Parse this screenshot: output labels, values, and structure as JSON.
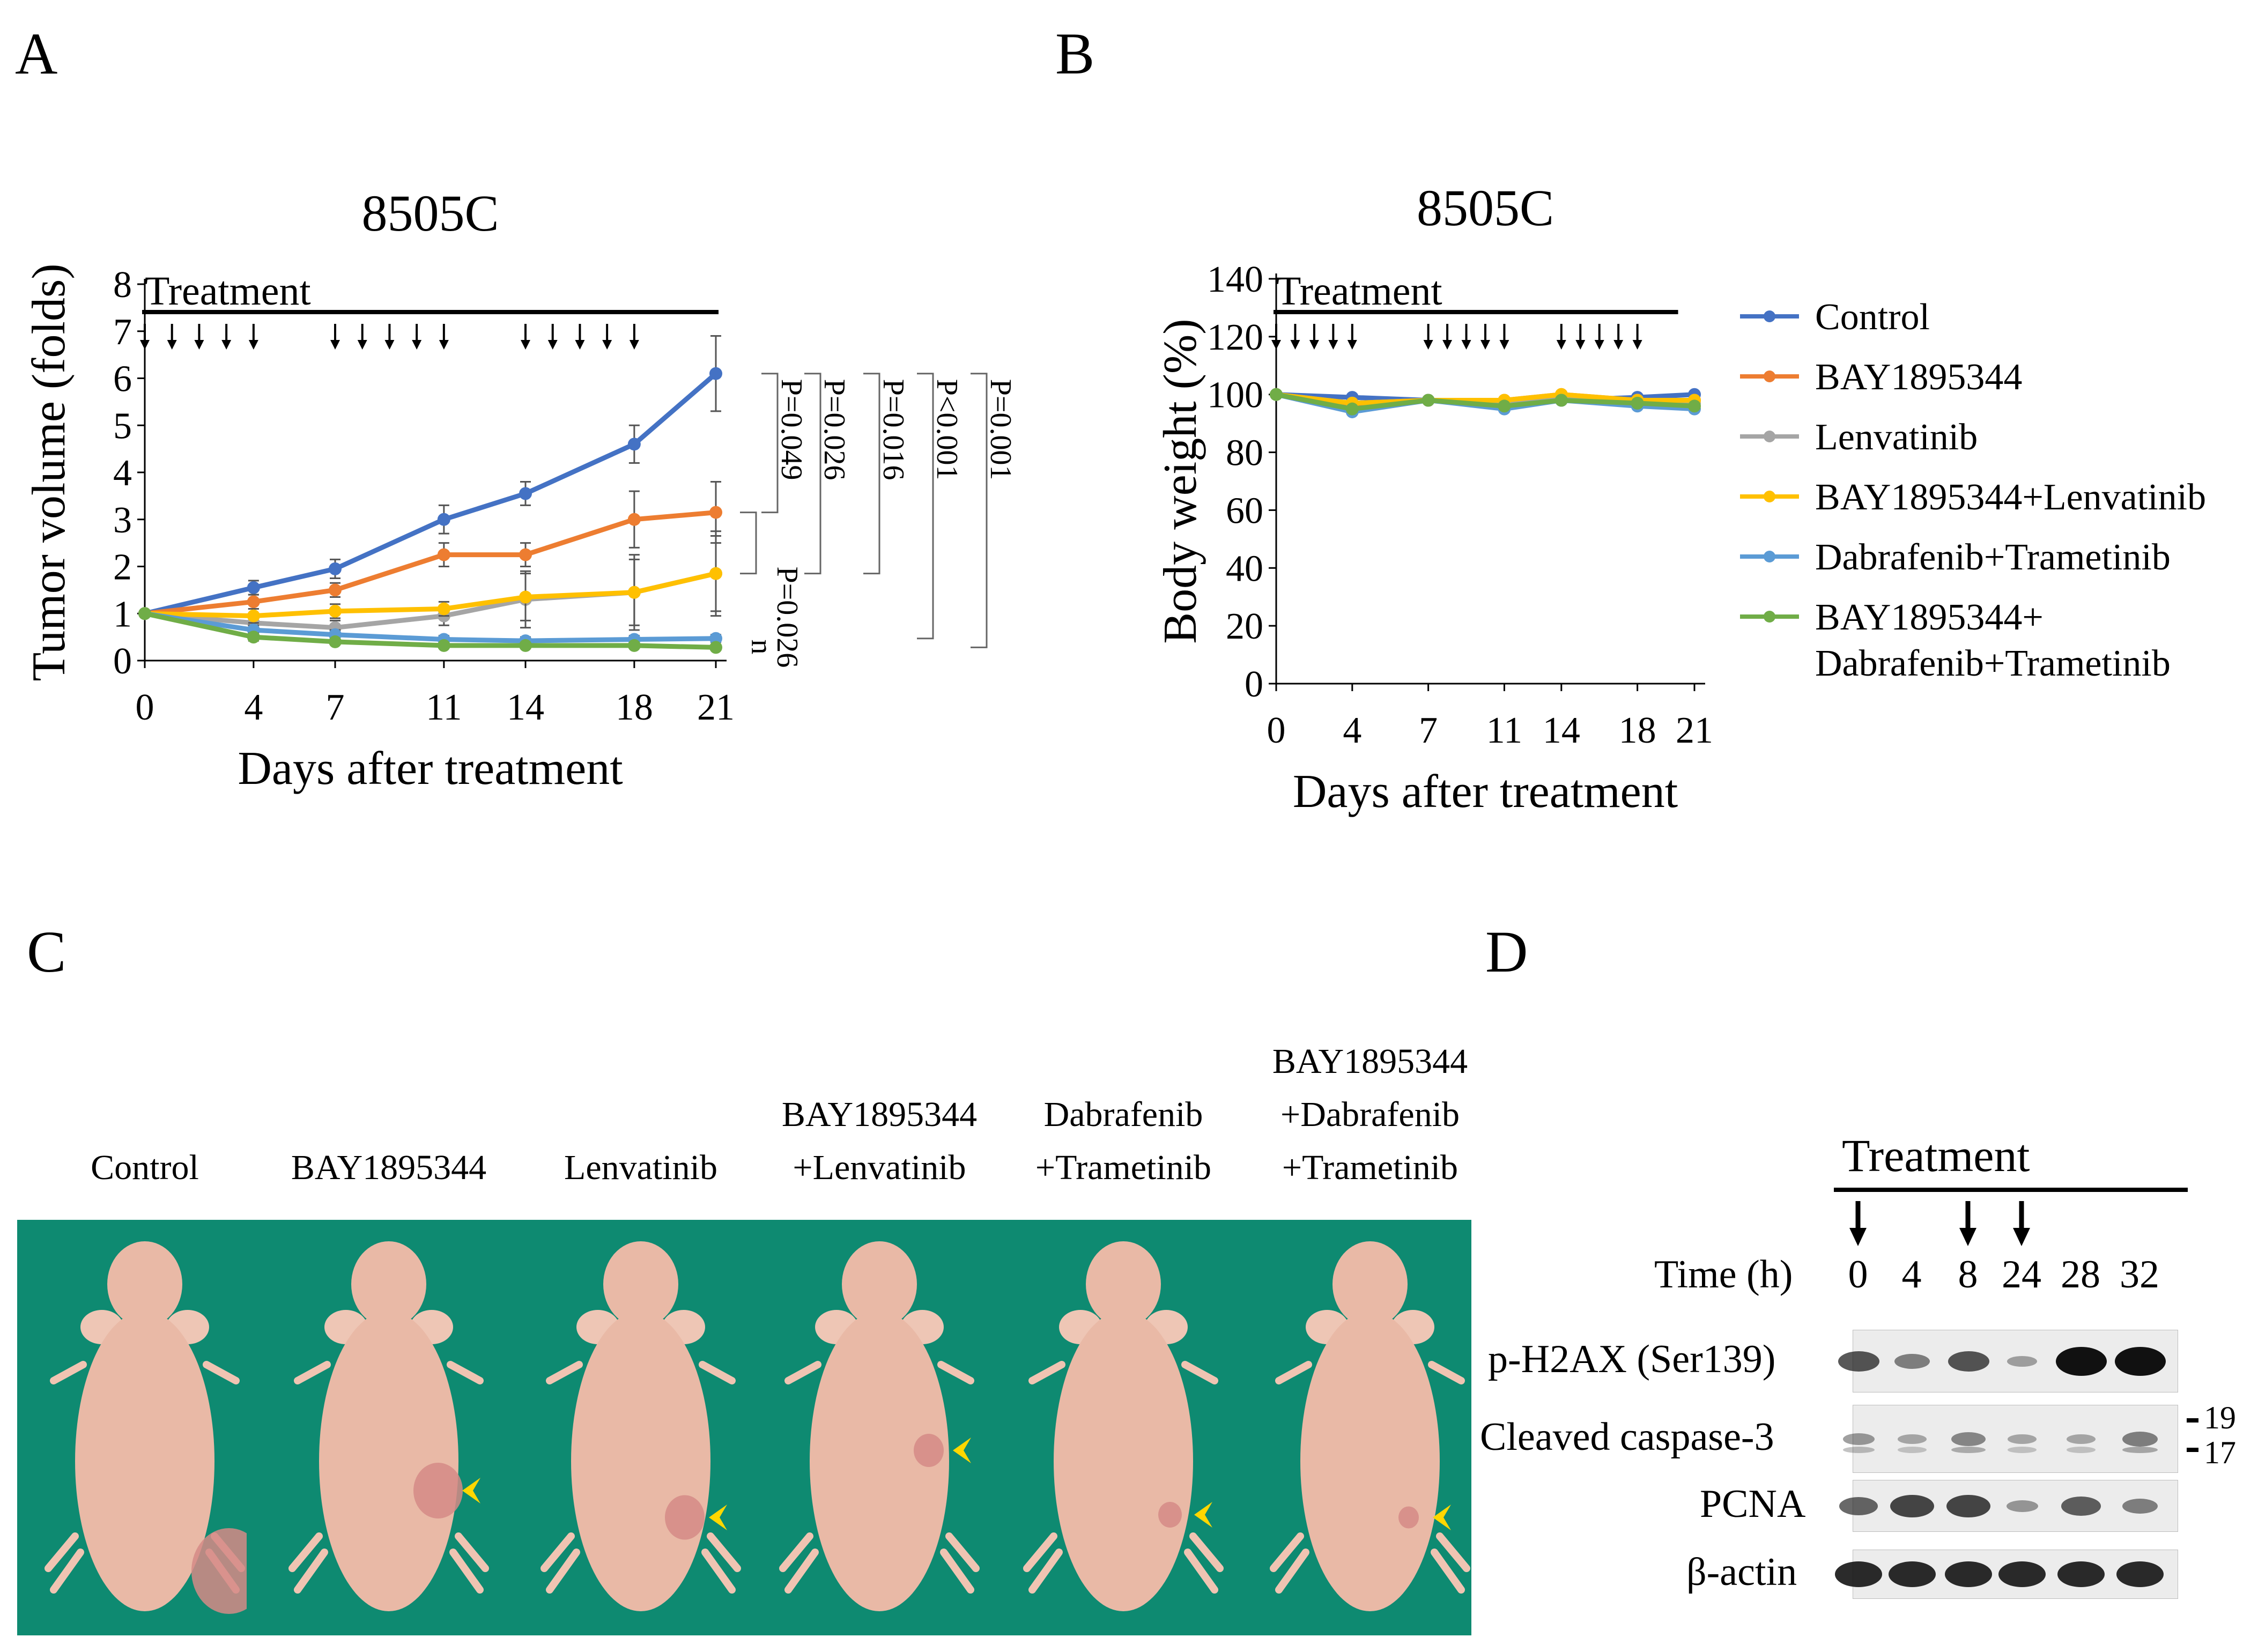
{
  "panels": {
    "a": "A",
    "b": "B",
    "c": "C",
    "d": "D"
  },
  "colors": {
    "control": "#4472c4",
    "bay": "#ed7d31",
    "lenvatinib": "#a5a5a5",
    "bay_lenvatinib": "#ffc000",
    "dabrafenib_trametinib": "#5b9bd5",
    "triple": "#70ad47",
    "arrowhead": "#ffd700",
    "background_green": "#0e8a71"
  },
  "chart_data": [
    {
      "type": "line",
      "title": "8505C",
      "xlabel": "Days after treatment",
      "ylabel": "Tumor volume (folds)",
      "xlim": [
        0,
        21
      ],
      "ylim": [
        0,
        8
      ],
      "xticks": [
        0,
        4,
        7,
        11,
        14,
        18,
        21
      ],
      "yticks": [
        0,
        1,
        2,
        3,
        4,
        5,
        6,
        7,
        8
      ],
      "treatment_label": "Treatment",
      "dose_days": [
        0,
        1,
        2,
        3,
        4,
        7,
        8,
        9,
        10,
        11,
        14,
        15,
        16,
        17,
        18
      ],
      "x": [
        0,
        4,
        7,
        11,
        14,
        18,
        21
      ],
      "series": [
        {
          "key": "control",
          "values": [
            1.0,
            1.55,
            1.95,
            3.0,
            3.55,
            4.6,
            6.1
          ],
          "err": [
            0.05,
            0.15,
            0.2,
            0.3,
            0.25,
            0.4,
            0.8
          ]
        },
        {
          "key": "bay",
          "values": [
            1.0,
            1.25,
            1.5,
            2.25,
            2.25,
            3.0,
            3.15
          ],
          "err": [
            0.05,
            0.15,
            0.15,
            0.25,
            0.25,
            0.6,
            0.65
          ]
        },
        {
          "key": "lenvatinib",
          "values": [
            1.0,
            0.8,
            0.7,
            0.95,
            1.3,
            1.45,
            1.85
          ],
          "err": [
            0.05,
            0.15,
            0.15,
            0.2,
            0.6,
            0.8,
            0.9
          ]
        },
        {
          "key": "bay_lenvatinib",
          "values": [
            1.0,
            0.95,
            1.05,
            1.1,
            1.35,
            1.45,
            1.85
          ],
          "err": [
            0.05,
            0.15,
            0.15,
            0.15,
            0.5,
            0.7,
            0.8
          ]
        },
        {
          "key": "dabrafenib_trametinib",
          "values": [
            1.0,
            0.65,
            0.55,
            0.45,
            0.42,
            0.45,
            0.47
          ],
          "err": [
            0.05,
            0.1,
            0.1,
            0.08,
            0.08,
            0.08,
            0.08
          ]
        },
        {
          "key": "triple",
          "values": [
            1.0,
            0.5,
            0.4,
            0.32,
            0.32,
            0.32,
            0.28
          ],
          "err": [
            0.05,
            0.08,
            0.06,
            0.05,
            0.05,
            0.05,
            0.05
          ]
        }
      ],
      "pvalues": [
        "P=0.049",
        "P=0.026",
        "P=0.016",
        "P<0.001",
        "P=0.001",
        "P=0.026"
      ],
      "ns_mark": "n"
    },
    {
      "type": "line",
      "title": "8505C",
      "xlabel": "Days after treatment",
      "ylabel": "Body weight (%)",
      "xlim": [
        0,
        21
      ],
      "ylim": [
        0,
        140
      ],
      "xticks": [
        0,
        4,
        7,
        11,
        14,
        18,
        21
      ],
      "yticks": [
        0,
        20,
        40,
        60,
        80,
        100,
        120,
        140
      ],
      "treatment_label": "Treatment",
      "dose_days": [
        0,
        1,
        2,
        3,
        4,
        8,
        9,
        10,
        11,
        12,
        15,
        16,
        17,
        18,
        19
      ],
      "x": [
        0,
        4,
        8,
        12,
        15,
        19,
        22
      ],
      "series": [
        {
          "key": "control",
          "values": [
            100,
            99,
            98,
            97,
            98,
            99,
            100
          ]
        },
        {
          "key": "bay",
          "values": [
            100,
            96,
            98,
            98,
            100,
            98,
            98
          ]
        },
        {
          "key": "lenvatinib",
          "values": [
            100,
            97,
            98,
            97,
            99,
            98,
            97
          ]
        },
        {
          "key": "bay_lenvatinib",
          "values": [
            100,
            97,
            98,
            98,
            100,
            98,
            98
          ]
        },
        {
          "key": "dabrafenib_trametinib",
          "values": [
            100,
            94,
            98,
            95,
            98,
            96,
            95
          ]
        },
        {
          "key": "triple",
          "values": [
            100,
            95,
            98,
            96,
            98,
            97,
            96
          ]
        }
      ],
      "legend": [
        {
          "key": "control",
          "label": "Control"
        },
        {
          "key": "bay",
          "label": "BAY1895344"
        },
        {
          "key": "lenvatinib",
          "label": "Lenvatinib"
        },
        {
          "key": "bay_lenvatinib",
          "label": "BAY1895344+Lenvatinib"
        },
        {
          "key": "dabrafenib_trametinib",
          "label": "Dabrafenib+Trametinib"
        },
        {
          "key": "triple",
          "label": "BAY1895344+",
          "label2": "Dabrafenib+Trametinib"
        }
      ]
    }
  ],
  "mice": [
    {
      "line1": "",
      "line2": "",
      "line3": "Control"
    },
    {
      "line1": "",
      "line2": "",
      "line3": "BAY1895344"
    },
    {
      "line1": "",
      "line2": "",
      "line3": "Lenvatinib"
    },
    {
      "line1": "",
      "line2": "BAY1895344",
      "line3": "+Lenvatinib"
    },
    {
      "line1": "",
      "line2": "Dabrafenib",
      "line3": "+Trametinib"
    },
    {
      "line1": "BAY1895344",
      "line2": "+Dabrafenib",
      "line3": "+Trametinib"
    }
  ],
  "western": {
    "treatment": "Treatment",
    "time_label": "Time (h)",
    "times": [
      "0",
      "4",
      "8",
      "24",
      "28",
      "32"
    ],
    "arrow_at": [
      0,
      2,
      3
    ],
    "markers": [
      "19",
      "17"
    ],
    "rows": [
      {
        "label": "p-H2AX (Ser139)",
        "intensity": [
          0.6,
          0.35,
          0.6,
          0.15,
          1.0,
          1.0
        ]
      },
      {
        "label": "Cleaved caspase-3",
        "intensity": [
          0.2,
          0.1,
          0.3,
          0.1,
          0.1,
          0.35
        ]
      },
      {
        "label": "PCNA",
        "intensity": [
          0.5,
          0.7,
          0.7,
          0.2,
          0.55,
          0.35
        ]
      },
      {
        "label": "β-actin",
        "intensity": [
          0.85,
          0.85,
          0.85,
          0.85,
          0.85,
          0.85
        ]
      }
    ]
  }
}
